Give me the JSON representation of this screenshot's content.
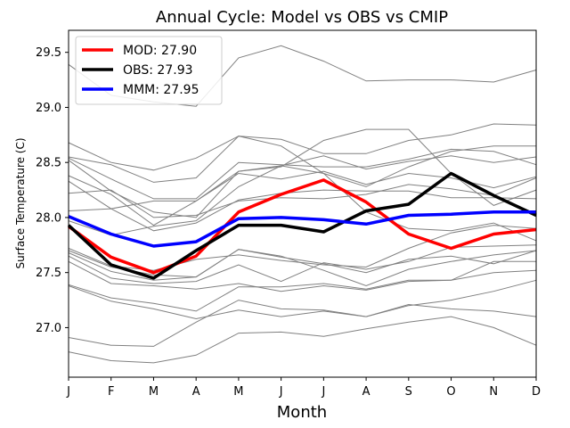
{
  "chart_data": {
    "type": "line",
    "title": "Annual Cycle: Model vs OBS vs CMIP",
    "xlabel": "Month",
    "ylabel": "Surface Temperature (C)",
    "categories": [
      "J",
      "F",
      "M",
      "A",
      "M",
      "J",
      "J",
      "A",
      "S",
      "O",
      "N",
      "D"
    ],
    "ylim": [
      26.55,
      29.7
    ],
    "yticks": [
      27.0,
      27.5,
      28.0,
      28.5,
      29.0,
      29.5
    ],
    "ytick_labels": [
      "27.0",
      "27.5",
      "28.0",
      "28.5",
      "29.0",
      "29.5"
    ],
    "legend_position": "top-left",
    "series": [
      {
        "name": "MOD",
        "label": "MOD: 27.90",
        "color": "#ff0000",
        "values": [
          27.92,
          27.64,
          27.5,
          27.65,
          28.05,
          28.21,
          28.34,
          28.14,
          27.85,
          27.72,
          27.85,
          27.89
        ]
      },
      {
        "name": "OBS",
        "label": "OBS: 27.93",
        "color": "#000000",
        "values": [
          27.93,
          27.57,
          27.45,
          27.7,
          27.93,
          27.93,
          27.87,
          28.06,
          28.12,
          28.4,
          28.2,
          28.02
        ]
      },
      {
        "name": "MMM",
        "label": "MMM: 27.95",
        "color": "#0000ff",
        "values": [
          28.01,
          27.85,
          27.74,
          27.78,
          27.99,
          28.0,
          27.98,
          27.94,
          28.02,
          28.03,
          28.05,
          28.05
        ]
      }
    ],
    "cmip_color": "#808080",
    "cmip_members": [
      [
        29.39,
        29.11,
        29.05,
        29.01,
        29.45,
        29.56,
        29.42,
        29.24,
        29.25,
        29.25,
        29.23,
        29.34
      ],
      [
        28.68,
        28.5,
        28.43,
        28.54,
        28.74,
        28.71,
        28.58,
        28.58,
        28.7,
        28.75,
        28.85,
        28.84
      ],
      [
        28.55,
        28.48,
        28.32,
        28.36,
        28.74,
        28.65,
        28.4,
        28.28,
        28.46,
        28.6,
        28.65,
        28.65
      ],
      [
        28.54,
        28.35,
        28.17,
        28.17,
        28.5,
        28.48,
        28.46,
        28.46,
        28.53,
        28.62,
        28.6,
        28.48
      ],
      [
        28.52,
        28.24,
        28.05,
        28.0,
        28.42,
        28.46,
        28.7,
        28.8,
        28.8,
        28.4,
        28.11,
        28.25
      ],
      [
        28.38,
        28.21,
        27.93,
        28.15,
        28.42,
        28.47,
        28.56,
        28.44,
        28.51,
        28.56,
        28.5,
        28.55
      ],
      [
        28.33,
        28.08,
        28.15,
        28.15,
        28.4,
        28.35,
        28.42,
        28.3,
        28.4,
        28.36,
        28.27,
        28.37
      ],
      [
        28.22,
        28.25,
        28.0,
        28.02,
        28.15,
        28.18,
        28.17,
        28.21,
        28.3,
        28.26,
        28.2,
        28.36
      ],
      [
        28.06,
        28.08,
        27.88,
        27.95,
        28.16,
        28.22,
        28.25,
        28.24,
        28.24,
        28.18,
        28.18,
        28.17
      ],
      [
        27.97,
        27.84,
        27.92,
        27.97,
        28.28,
        28.47,
        28.4,
        28.05,
        27.9,
        27.88,
        27.95,
        27.79
      ],
      [
        27.72,
        27.56,
        27.52,
        27.62,
        27.66,
        27.61,
        27.57,
        27.55,
        27.72,
        27.86,
        27.93,
        27.9
      ],
      [
        27.7,
        27.55,
        27.48,
        27.46,
        27.71,
        27.65,
        27.52,
        27.38,
        27.53,
        27.6,
        27.66,
        27.7
      ],
      [
        27.68,
        27.51,
        27.43,
        27.46,
        27.71,
        27.64,
        27.58,
        27.5,
        27.62,
        27.65,
        27.58,
        27.7
      ],
      [
        27.65,
        27.45,
        27.4,
        27.42,
        27.57,
        27.42,
        27.59,
        27.53,
        27.6,
        27.73,
        27.74,
        27.75
      ],
      [
        27.6,
        27.4,
        27.38,
        27.35,
        27.4,
        27.33,
        27.38,
        27.34,
        27.42,
        27.43,
        27.6,
        27.6
      ],
      [
        27.39,
        27.27,
        27.22,
        27.15,
        27.37,
        27.37,
        27.4,
        27.35,
        27.43,
        27.43,
        27.5,
        27.52
      ],
      [
        27.38,
        27.24,
        27.17,
        27.08,
        27.16,
        27.1,
        27.15,
        27.1,
        27.2,
        27.25,
        27.33,
        27.43
      ],
      [
        26.91,
        26.84,
        26.83,
        27.05,
        27.25,
        27.17,
        27.16,
        27.1,
        27.21,
        27.17,
        27.15,
        27.1
      ],
      [
        26.78,
        26.7,
        26.68,
        26.75,
        26.95,
        26.96,
        26.92,
        26.99,
        27.05,
        27.1,
        27.0,
        26.84
      ]
    ]
  }
}
